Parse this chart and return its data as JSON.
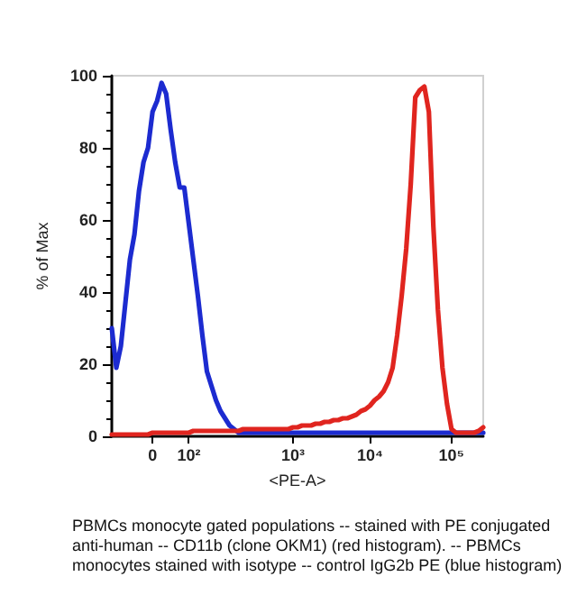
{
  "chart_data": {
    "type": "line",
    "xlabel": "<PE-A>",
    "ylabel": "% of Max",
    "categories": [
      null,
      null,
      null,
      null,
      null,
      null,
      null,
      null,
      null,
      "0",
      null,
      null,
      null,
      null,
      null,
      null,
      null,
      "10²",
      null,
      null,
      null,
      null,
      null,
      null,
      null,
      null,
      null,
      null,
      null,
      null,
      null,
      null,
      null,
      null,
      null,
      null,
      null,
      null,
      null,
      null,
      "10³",
      null,
      null,
      null,
      null,
      null,
      null,
      null,
      null,
      null,
      null,
      null,
      null,
      null,
      null,
      null,
      null,
      "10⁴",
      null,
      null,
      null,
      null,
      null,
      null,
      null,
      null,
      null,
      null,
      null,
      null,
      null,
      null,
      null,
      null,
      null,
      "10⁵",
      null,
      null,
      null,
      null,
      null,
      null,
      null
    ],
    "ylim": [
      0,
      100
    ],
    "yticks": [
      0,
      20,
      40,
      60,
      80,
      100
    ],
    "grid": false,
    "marker": "none",
    "line_style": "solid",
    "series": [
      {
        "color": "#1c2bd0",
        "values": [
          30,
          19,
          25,
          37,
          49,
          56,
          68,
          76,
          80,
          90,
          93,
          98,
          95,
          85,
          76,
          69,
          69,
          59,
          49,
          39,
          28,
          18,
          14,
          10,
          7,
          5,
          3,
          2,
          1,
          1,
          1,
          1,
          1,
          1,
          1,
          1,
          1,
          1,
          1,
          1,
          1,
          1,
          1,
          1,
          1,
          1,
          1,
          1,
          1,
          1,
          1,
          1,
          1,
          1,
          1,
          1,
          1,
          1,
          1,
          1,
          1,
          1,
          1,
          1,
          1,
          1,
          1,
          1,
          1,
          1,
          1,
          1,
          1,
          1,
          1,
          1,
          1,
          1,
          1,
          1,
          1,
          1,
          1
        ]
      },
      {
        "color": "#e0251f",
        "values": [
          0.5,
          0.5,
          0.5,
          0.5,
          0.5,
          0.5,
          0.5,
          0.5,
          0.5,
          1,
          1,
          1,
          1,
          1,
          1,
          1,
          1,
          1,
          1.5,
          1.5,
          1.5,
          1.5,
          1.5,
          1.5,
          1.5,
          1.5,
          1.5,
          1.5,
          1.5,
          2,
          2,
          2,
          2,
          2,
          2,
          2,
          2,
          2,
          2,
          2,
          2.5,
          2.5,
          3,
          3,
          3,
          3.5,
          3.5,
          4,
          4,
          4.5,
          4.5,
          5,
          5,
          5.5,
          6,
          7,
          7.5,
          8.5,
          10,
          11,
          12.5,
          15,
          19,
          28,
          39,
          52,
          70,
          94,
          96,
          97,
          90,
          58,
          35,
          19,
          9,
          2,
          1,
          1,
          1,
          1,
          1,
          1.5,
          2.5
        ]
      }
    ],
    "annotations": [
      "PBMCs monocyte gated populations -- stained with PE conjugated anti-human -- CD11b (clone OKM1) (red histogram). -- PBMCs monocytes stained with isotype -- control IgG2b PE (blue histogram)"
    ]
  }
}
